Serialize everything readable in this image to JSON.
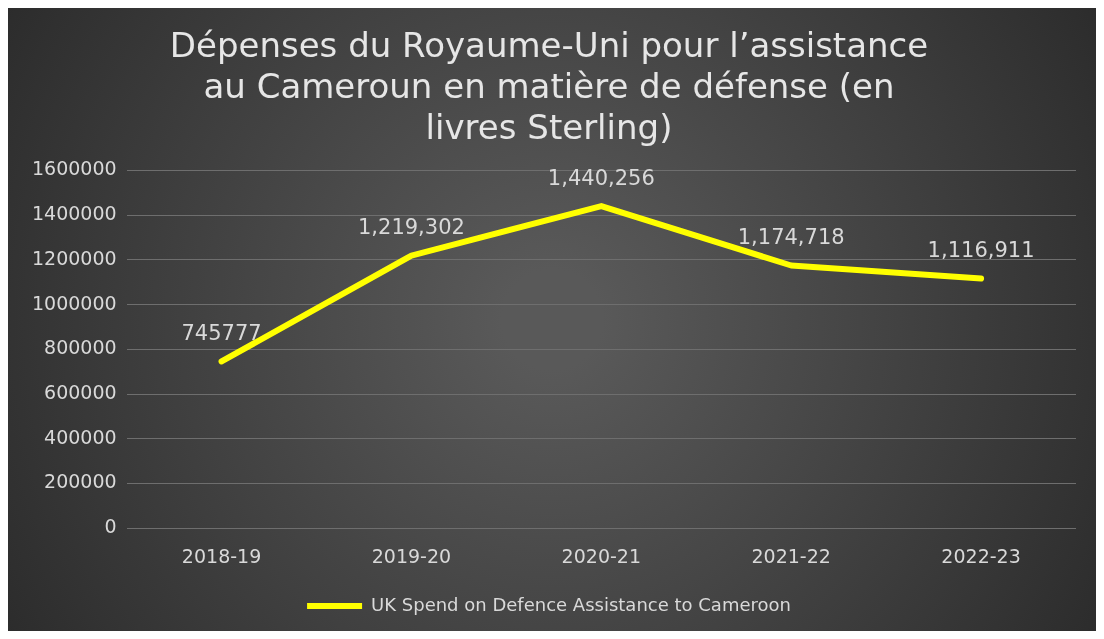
{
  "chart_data": {
    "type": "line",
    "title": "Dépenses du Royaume-Uni pour l’assistance au Cameroun en matière de défense (en livres Sterling)",
    "categories": [
      "2018-19",
      "2019-20",
      "2020-21",
      "2021-22",
      "2022-23"
    ],
    "series": [
      {
        "name": "UK Spend on Defence Assistance to Cameroon",
        "color": "#ffff00",
        "values": [
          745777,
          1219302,
          1440256,
          1174718,
          1116911
        ],
        "value_labels": [
          "745777",
          "1,219,302",
          "1,440,256",
          "1,174,718",
          "1,116,911"
        ]
      }
    ],
    "ylim": [
      0,
      1600000
    ],
    "yticks": [
      0,
      200000,
      400000,
      600000,
      800000,
      1000000,
      1200000,
      1400000,
      1600000
    ],
    "grid": "y",
    "legend": "bottom",
    "marker": "none",
    "line_style": "solid"
  }
}
